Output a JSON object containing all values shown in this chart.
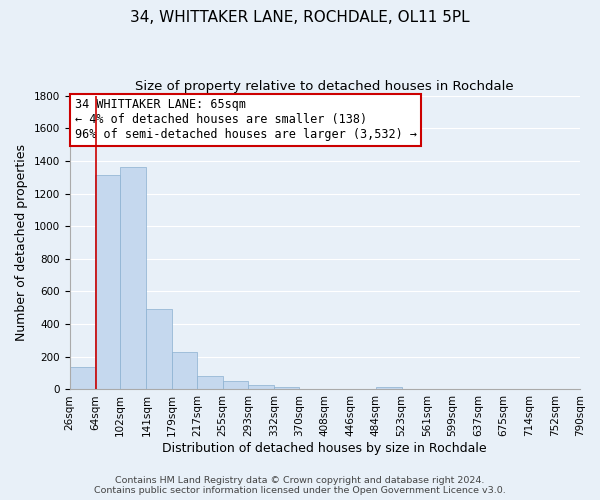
{
  "title_line1": "34, WHITTAKER LANE, ROCHDALE, OL11 5PL",
  "title_line2": "Size of property relative to detached houses in Rochdale",
  "xlabel": "Distribution of detached houses by size in Rochdale",
  "ylabel": "Number of detached properties",
  "bar_color": "#c5d8ee",
  "bar_edge_color": "#8ab0d0",
  "bar_left_edges": [
    26,
    64,
    102,
    141,
    179,
    217,
    255,
    293,
    332,
    370,
    408,
    446,
    484,
    523,
    561,
    599,
    637,
    675,
    714,
    752
  ],
  "bar_heights": [
    140,
    1315,
    1365,
    490,
    230,
    85,
    50,
    25,
    15,
    0,
    0,
    0,
    12,
    0,
    0,
    0,
    0,
    0,
    0,
    0
  ],
  "bar_widths": [
    38,
    38,
    39,
    38,
    38,
    38,
    38,
    39,
    38,
    38,
    38,
    38,
    39,
    38,
    38,
    38,
    38,
    39,
    38,
    38
  ],
  "xtick_labels": [
    "26sqm",
    "64sqm",
    "102sqm",
    "141sqm",
    "179sqm",
    "217sqm",
    "255sqm",
    "293sqm",
    "332sqm",
    "370sqm",
    "408sqm",
    "446sqm",
    "484sqm",
    "523sqm",
    "561sqm",
    "599sqm",
    "637sqm",
    "675sqm",
    "714sqm",
    "752sqm",
    "790sqm"
  ],
  "ylim": [
    0,
    1800
  ],
  "yticks": [
    0,
    200,
    400,
    600,
    800,
    1000,
    1200,
    1400,
    1600,
    1800
  ],
  "vline_x": 65,
  "vline_color": "#cc0000",
  "annotation_line1": "34 WHITTAKER LANE: 65sqm",
  "annotation_line2": "← 4% of detached houses are smaller (138)",
  "annotation_line3": "96% of semi-detached houses are larger (3,532) →",
  "annotation_box_color": "#ffffff",
  "annotation_box_edgecolor": "#cc0000",
  "footer_line1": "Contains HM Land Registry data © Crown copyright and database right 2024.",
  "footer_line2": "Contains public sector information licensed under the Open Government Licence v3.0.",
  "background_color": "#e8f0f8",
  "grid_color": "#ffffff",
  "title_fontsize": 11,
  "subtitle_fontsize": 9.5,
  "axis_label_fontsize": 9,
  "tick_fontsize": 7.5,
  "annotation_fontsize": 8.5,
  "footer_fontsize": 6.8
}
